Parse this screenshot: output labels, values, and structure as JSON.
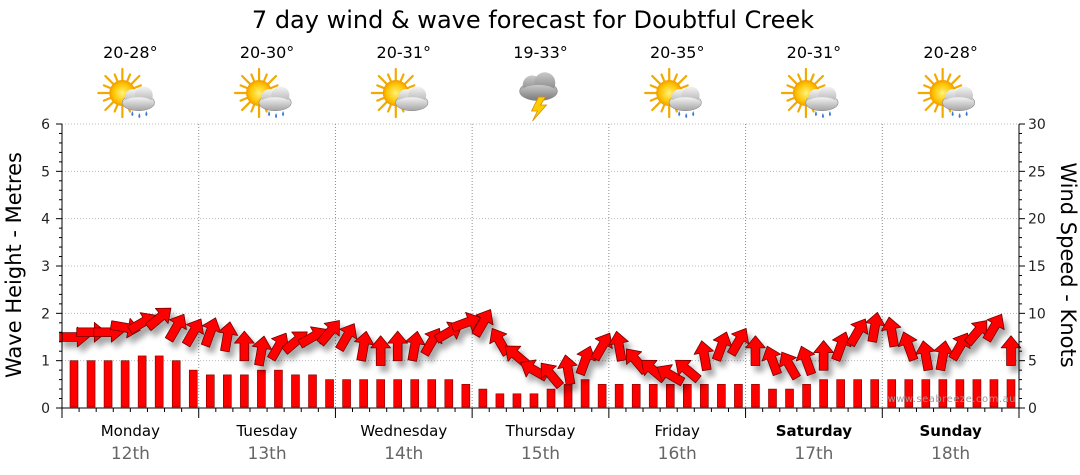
{
  "chart_data": {
    "type": "line",
    "title": "7 day wind & wave forecast for Doubtful Creek",
    "ylabel": "Wave Height - Metres",
    "y2label": "Wind Speed - Knots",
    "ylim": [
      0,
      6
    ],
    "y2lim": [
      0,
      30
    ],
    "yticks": [
      "0",
      "1",
      "2",
      "3",
      "4",
      "5",
      "6"
    ],
    "y2ticks": [
      "0",
      "5",
      "10",
      "15",
      "20",
      "25",
      "30"
    ],
    "grid": true,
    "days": [
      {
        "name": "Monday",
        "date": "12th",
        "temp": "20-28°",
        "icon": "sun-cloud-rain-icon",
        "bold": false
      },
      {
        "name": "Tuesday",
        "date": "13th",
        "temp": "20-30°",
        "icon": "sun-cloud-rain-icon",
        "bold": false
      },
      {
        "name": "Wednesday",
        "date": "14th",
        "temp": "20-31°",
        "icon": "sun-cloud-icon",
        "bold": false
      },
      {
        "name": "Thursday",
        "date": "15th",
        "temp": "19-33°",
        "icon": "storm-cloud-icon",
        "bold": false
      },
      {
        "name": "Friday",
        "date": "16th",
        "temp": "20-35°",
        "icon": "sun-cloud-rain-icon",
        "bold": false
      },
      {
        "name": "Saturday",
        "date": "17th",
        "temp": "20-31°",
        "icon": "sun-cloud-rain-icon",
        "bold": true
      },
      {
        "name": "Sunday",
        "date": "18th",
        "temp": "20-28°",
        "icon": "sun-cloud-rain-icon",
        "bold": true
      }
    ],
    "wave_series": {
      "name": "Wave Height",
      "color": "#ff0000",
      "values": [
        1.0,
        1.0,
        1.0,
        1.0,
        1.1,
        1.1,
        1.0,
        0.8,
        0.7,
        0.7,
        0.7,
        0.8,
        0.8,
        0.7,
        0.7,
        0.6,
        0.6,
        0.6,
        0.6,
        0.6,
        0.6,
        0.6,
        0.6,
        0.5,
        0.4,
        0.3,
        0.3,
        0.3,
        0.4,
        0.5,
        0.6,
        0.5,
        0.5,
        0.5,
        0.5,
        0.5,
        0.5,
        0.5,
        0.5,
        0.5,
        0.5,
        0.4,
        0.4,
        0.5,
        0.6,
        0.6,
        0.6,
        0.6,
        0.6,
        0.6,
        0.6,
        0.6,
        0.6,
        0.6,
        0.6,
        0.6
      ]
    },
    "wind_series": {
      "name": "Wind Speed",
      "color": "#ff0000",
      "speed_knots": [
        7.5,
        8.0,
        8.0,
        8.5,
        9.0,
        9.5,
        8.5,
        8.0,
        8.0,
        7.5,
        6.5,
        6.0,
        6.5,
        7.0,
        7.5,
        8.0,
        7.5,
        6.5,
        6.0,
        6.5,
        6.5,
        7.0,
        8.0,
        9.0,
        9.0,
        7.0,
        5.5,
        4.0,
        3.5,
        4.0,
        5.0,
        6.5,
        6.5,
        5.0,
        4.0,
        3.5,
        4.0,
        5.5,
        6.5,
        7.0,
        6.0,
        5.0,
        4.5,
        5.0,
        5.5,
        6.5,
        8.0,
        8.5,
        8.0,
        6.5,
        5.5,
        5.5,
        6.5,
        8.0,
        8.5,
        6.0
      ],
      "direction_deg": [
        0,
        0,
        0,
        10,
        330,
        320,
        300,
        300,
        290,
        280,
        270,
        280,
        300,
        320,
        330,
        310,
        300,
        280,
        270,
        270,
        280,
        300,
        330,
        340,
        300,
        240,
        220,
        210,
        230,
        260,
        290,
        300,
        260,
        230,
        220,
        210,
        220,
        260,
        290,
        300,
        270,
        250,
        240,
        250,
        270,
        290,
        300,
        280,
        260,
        250,
        260,
        280,
        300,
        310,
        300,
        270
      ]
    },
    "credit": "www.seabreeze.com.au"
  }
}
